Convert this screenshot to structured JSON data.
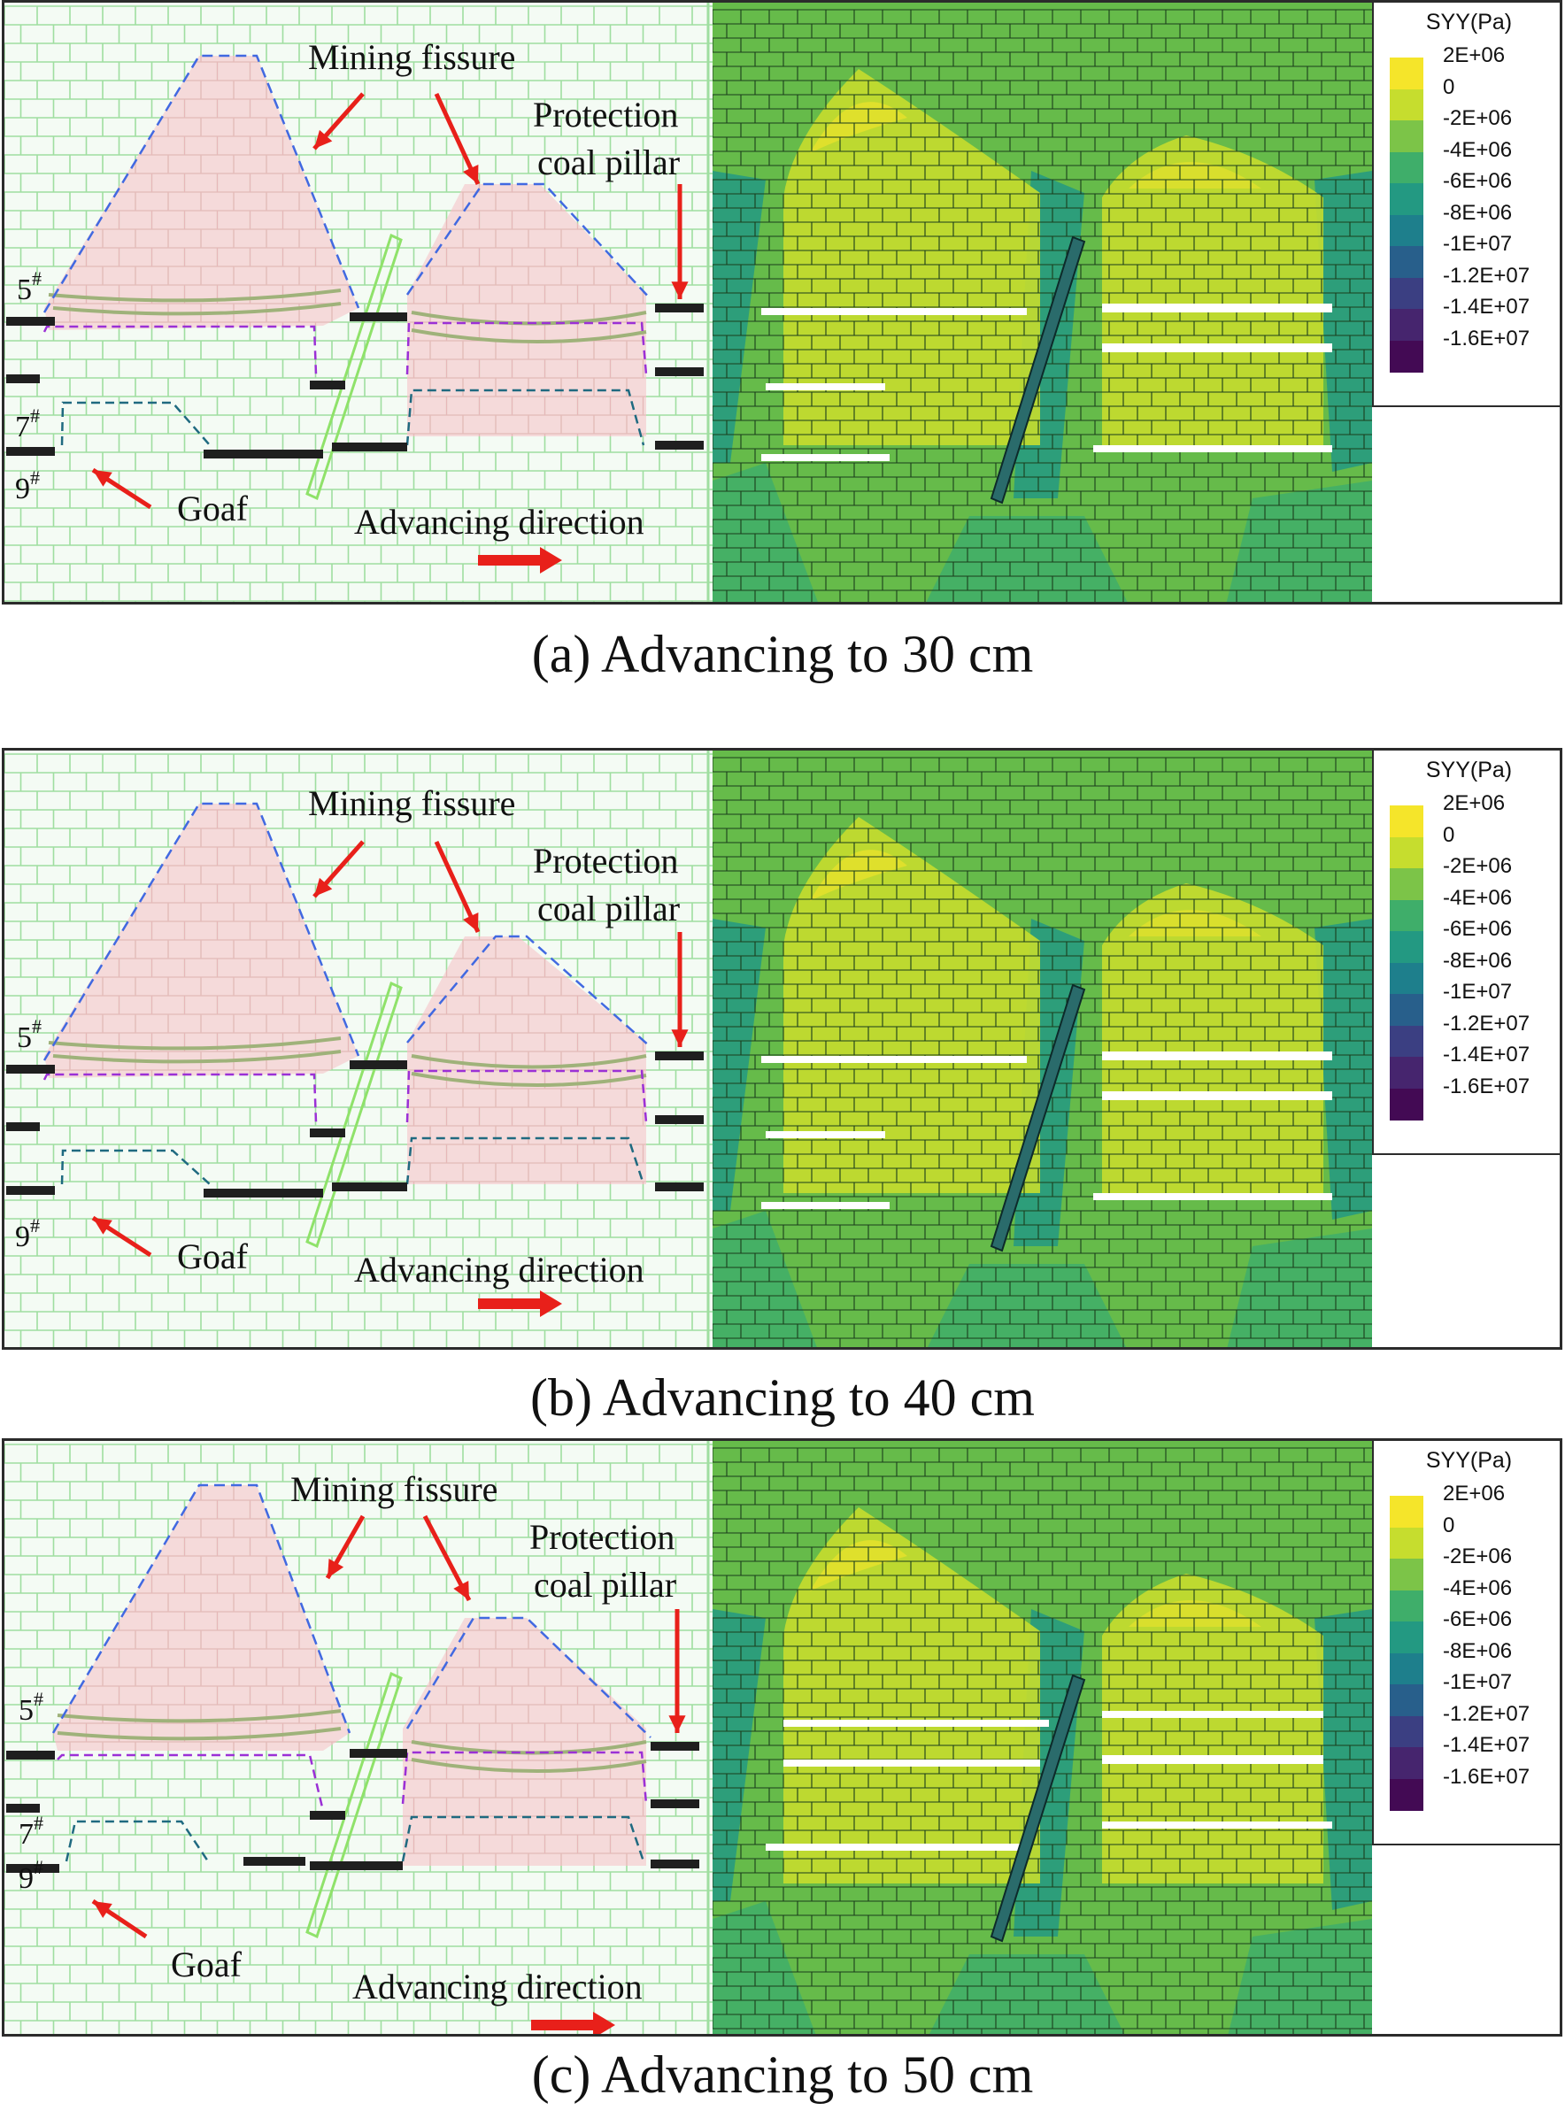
{
  "labels": {
    "mining_fissure": "Mining fissure",
    "protection_line1": "Protection",
    "protection_line2": "coal pillar",
    "goaf": "Goaf",
    "advancing_direction": "Advancing direction",
    "seam_5": "5",
    "seam_7": "7",
    "seam_9": "9",
    "seam_mark": "#"
  },
  "legend": {
    "title": "SYY(Pa)",
    "items": [
      {
        "label": "2E+06",
        "color": "#f5e52a"
      },
      {
        "label": "0",
        "color": "#c6dd2e"
      },
      {
        "label": "-2E+06",
        "color": "#7cc448"
      },
      {
        "label": "-4E+06",
        "color": "#3fae6a"
      },
      {
        "label": "-6E+06",
        "color": "#239982"
      },
      {
        "label": "-8E+06",
        "color": "#1e7f8c"
      },
      {
        "label": "-1E+07",
        "color": "#285f8b"
      },
      {
        "label": "-1.2E+07",
        "color": "#3b3f82"
      },
      {
        "label": "-1.4E+07",
        "color": "#46256e"
      },
      {
        "label": "-1.6E+07",
        "color": "#430a54"
      }
    ]
  },
  "panels": [
    {
      "caption": "(a)   Advancing to 30 cm"
    },
    {
      "caption": "(b)   Advancing to 40 cm"
    },
    {
      "caption": "(c)   Advancing to 50 cm"
    }
  ],
  "colors": {
    "brick_green": "#9fdea0",
    "zone_pink": "#f6cfd2",
    "fissure_blue": "#4169e1",
    "seam_purple": "#9b30d6",
    "seam_teal": "#1f6a80",
    "arrow_red": "#e8201a",
    "stress_bg": "#66bb4a",
    "fault_green": "#8fe26a"
  }
}
